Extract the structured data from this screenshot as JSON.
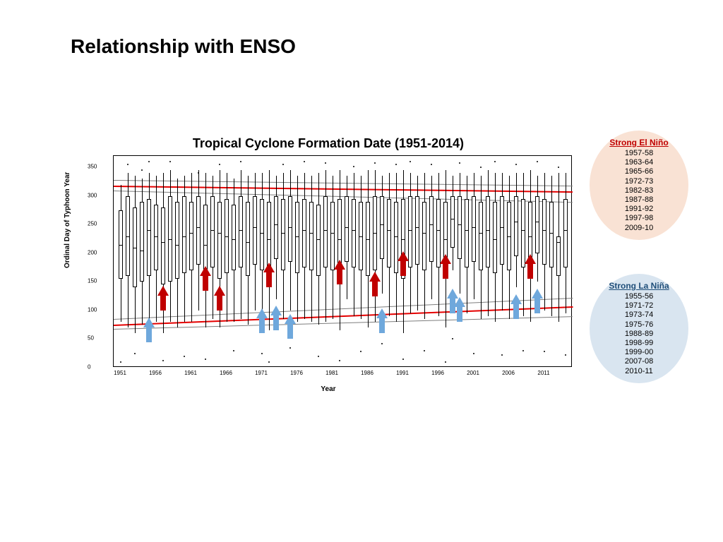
{
  "page_title": "Relationship with ENSO",
  "chart": {
    "type": "boxplot",
    "title": "Tropical Cyclone Formation Date (1951-2014)",
    "x_label": "Year",
    "y_label": "Ordinal Day of Typhoon Year",
    "ylim": [
      0,
      370
    ],
    "yticks": [
      0,
      50,
      100,
      150,
      200,
      250,
      300,
      350
    ],
    "xlim": [
      1951,
      2014
    ],
    "xticks": [
      1951,
      1956,
      1961,
      1966,
      1971,
      1976,
      1981,
      1986,
      1991,
      1996,
      2001,
      2006,
      2011
    ],
    "tick_fontsize": 8,
    "title_fontsize": 18,
    "label_fontsize": 10,
    "background_color": "#ffffff",
    "box_border_color": "#000000",
    "trend_lines": [
      {
        "color": "#e40000",
        "y_start": 75,
        "y_end": 107,
        "width": 2,
        "desc": "lower red"
      },
      {
        "color": "#e40000",
        "y_start": 318,
        "y_end": 308,
        "width": 2,
        "desc": "upper red"
      },
      {
        "color": "#7d7d7d",
        "y_start": 68,
        "y_end": 90,
        "width": 1,
        "desc": "lower CI bottom"
      },
      {
        "color": "#7d7d7d",
        "y_start": 85,
        "y_end": 122,
        "width": 1,
        "desc": "lower CI top"
      },
      {
        "color": "#7d7d7d",
        "y_start": 310,
        "y_end": 290,
        "width": 1,
        "desc": "upper CI bottom"
      },
      {
        "color": "#7d7d7d",
        "y_start": 328,
        "y_end": 318,
        "width": 1,
        "desc": "upper CI top"
      }
    ],
    "arrows_elnino": {
      "color": "#c00000",
      "years": [
        1957,
        1963,
        1965,
        1972,
        1982,
        1987,
        1991,
        1997,
        2009
      ],
      "y_positions": [
        100,
        135,
        100,
        140,
        145,
        125,
        160,
        155,
        155
      ]
    },
    "arrows_lanina": {
      "color": "#6fa8dc",
      "years": [
        1955,
        1971,
        1973,
        1975,
        1988,
        1998,
        1999,
        2007,
        2010
      ],
      "y_positions": [
        45,
        60,
        65,
        50,
        60,
        95,
        80,
        85,
        95
      ]
    },
    "boxes": [
      {
        "y": 1951,
        "q1": 155,
        "m": 215,
        "q3": 275,
        "lo": 80,
        "hi": 320
      },
      {
        "y": 1952,
        "q1": 160,
        "m": 230,
        "q3": 300,
        "lo": 70,
        "hi": 340
      },
      {
        "y": 1953,
        "q1": 140,
        "m": 210,
        "q3": 280,
        "lo": 60,
        "hi": 335
      },
      {
        "y": 1954,
        "q1": 150,
        "m": 205,
        "q3": 290,
        "lo": 75,
        "hi": 330
      },
      {
        "y": 1955,
        "q1": 160,
        "m": 240,
        "q3": 295,
        "lo": 65,
        "hi": 340
      },
      {
        "y": 1956,
        "q1": 170,
        "m": 230,
        "q3": 285,
        "lo": 80,
        "hi": 335
      },
      {
        "y": 1957,
        "q1": 145,
        "m": 220,
        "q3": 280,
        "lo": 60,
        "hi": 340
      },
      {
        "y": 1958,
        "q1": 150,
        "m": 225,
        "q3": 300,
        "lo": 80,
        "hi": 345
      },
      {
        "y": 1959,
        "q1": 155,
        "m": 215,
        "q3": 290,
        "lo": 70,
        "hi": 330
      },
      {
        "y": 1960,
        "q1": 165,
        "m": 230,
        "q3": 300,
        "lo": 80,
        "hi": 335
      },
      {
        "y": 1961,
        "q1": 170,
        "m": 235,
        "q3": 290,
        "lo": 80,
        "hi": 340
      },
      {
        "y": 1962,
        "q1": 180,
        "m": 245,
        "q3": 300,
        "lo": 100,
        "hi": 345
      },
      {
        "y": 1963,
        "q1": 150,
        "m": 215,
        "q3": 285,
        "lo": 70,
        "hi": 340
      },
      {
        "y": 1964,
        "q1": 175,
        "m": 240,
        "q3": 300,
        "lo": 85,
        "hi": 335
      },
      {
        "y": 1965,
        "q1": 155,
        "m": 235,
        "q3": 290,
        "lo": 70,
        "hi": 345
      },
      {
        "y": 1966,
        "q1": 165,
        "m": 230,
        "q3": 295,
        "lo": 80,
        "hi": 340
      },
      {
        "y": 1967,
        "q1": 170,
        "m": 225,
        "q3": 285,
        "lo": 80,
        "hi": 330
      },
      {
        "y": 1968,
        "q1": 175,
        "m": 240,
        "q3": 300,
        "lo": 85,
        "hi": 345
      },
      {
        "y": 1969,
        "q1": 160,
        "m": 220,
        "q3": 290,
        "lo": 75,
        "hi": 335
      },
      {
        "y": 1970,
        "q1": 180,
        "m": 245,
        "q3": 300,
        "lo": 100,
        "hi": 340
      },
      {
        "y": 1971,
        "q1": 170,
        "m": 235,
        "q3": 295,
        "lo": 80,
        "hi": 340
      },
      {
        "y": 1972,
        "q1": 155,
        "m": 225,
        "q3": 290,
        "lo": 65,
        "hi": 345
      },
      {
        "y": 1973,
        "q1": 190,
        "m": 250,
        "q3": 300,
        "lo": 120,
        "hi": 335
      },
      {
        "y": 1974,
        "q1": 170,
        "m": 235,
        "q3": 295,
        "lo": 85,
        "hi": 340
      },
      {
        "y": 1975,
        "q1": 185,
        "m": 245,
        "q3": 300,
        "lo": 100,
        "hi": 345
      },
      {
        "y": 1976,
        "q1": 165,
        "m": 230,
        "q3": 290,
        "lo": 80,
        "hi": 335
      },
      {
        "y": 1977,
        "q1": 175,
        "m": 240,
        "q3": 295,
        "lo": 85,
        "hi": 340
      },
      {
        "y": 1978,
        "q1": 170,
        "m": 235,
        "q3": 290,
        "lo": 80,
        "hi": 335
      },
      {
        "y": 1979,
        "q1": 160,
        "m": 225,
        "q3": 285,
        "lo": 75,
        "hi": 340
      },
      {
        "y": 1980,
        "q1": 175,
        "m": 240,
        "q3": 300,
        "lo": 80,
        "hi": 345
      },
      {
        "y": 1981,
        "q1": 170,
        "m": 235,
        "q3": 290,
        "lo": 85,
        "hi": 335
      },
      {
        "y": 1982,
        "q1": 155,
        "m": 225,
        "q3": 295,
        "lo": 65,
        "hi": 345
      },
      {
        "y": 1983,
        "q1": 185,
        "m": 245,
        "q3": 300,
        "lo": 120,
        "hi": 335
      },
      {
        "y": 1984,
        "q1": 175,
        "m": 240,
        "q3": 295,
        "lo": 90,
        "hi": 340
      },
      {
        "y": 1985,
        "q1": 170,
        "m": 230,
        "q3": 290,
        "lo": 85,
        "hi": 335
      },
      {
        "y": 1986,
        "q1": 160,
        "m": 225,
        "q3": 290,
        "lo": 70,
        "hi": 345
      },
      {
        "y": 1987,
        "q1": 170,
        "m": 235,
        "q3": 300,
        "lo": 80,
        "hi": 345
      },
      {
        "y": 1988,
        "q1": 190,
        "m": 250,
        "q3": 300,
        "lo": 130,
        "hi": 335
      },
      {
        "y": 1989,
        "q1": 175,
        "m": 240,
        "q3": 295,
        "lo": 90,
        "hi": 340
      },
      {
        "y": 1990,
        "q1": 165,
        "m": 230,
        "q3": 290,
        "lo": 80,
        "hi": 340
      },
      {
        "y": 1991,
        "q1": 155,
        "m": 225,
        "q3": 295,
        "lo": 60,
        "hi": 345
      },
      {
        "y": 1992,
        "q1": 175,
        "m": 240,
        "q3": 300,
        "lo": 95,
        "hi": 340
      },
      {
        "y": 1993,
        "q1": 180,
        "m": 245,
        "q3": 300,
        "lo": 100,
        "hi": 335
      },
      {
        "y": 1994,
        "q1": 170,
        "m": 235,
        "q3": 290,
        "lo": 85,
        "hi": 340
      },
      {
        "y": 1995,
        "q1": 185,
        "m": 250,
        "q3": 300,
        "lo": 120,
        "hi": 335
      },
      {
        "y": 1996,
        "q1": 175,
        "m": 240,
        "q3": 295,
        "lo": 90,
        "hi": 340
      },
      {
        "y": 1997,
        "q1": 160,
        "m": 225,
        "q3": 290,
        "lo": 70,
        "hi": 345
      },
      {
        "y": 1998,
        "q1": 210,
        "m": 260,
        "q3": 300,
        "lo": 170,
        "hi": 335
      },
      {
        "y": 1999,
        "q1": 190,
        "m": 250,
        "q3": 300,
        "lo": 130,
        "hi": 340
      },
      {
        "y": 2000,
        "q1": 175,
        "m": 240,
        "q3": 295,
        "lo": 95,
        "hi": 335
      },
      {
        "y": 2001,
        "q1": 185,
        "m": 245,
        "q3": 300,
        "lo": 120,
        "hi": 340
      },
      {
        "y": 2002,
        "q1": 170,
        "m": 235,
        "q3": 290,
        "lo": 85,
        "hi": 335
      },
      {
        "y": 2003,
        "q1": 175,
        "m": 240,
        "q3": 300,
        "lo": 90,
        "hi": 345
      },
      {
        "y": 2004,
        "q1": 165,
        "m": 225,
        "q3": 290,
        "lo": 80,
        "hi": 340
      },
      {
        "y": 2005,
        "q1": 180,
        "m": 245,
        "q3": 300,
        "lo": 100,
        "hi": 340
      },
      {
        "y": 2006,
        "q1": 170,
        "m": 230,
        "q3": 290,
        "lo": 85,
        "hi": 335
      },
      {
        "y": 2007,
        "q1": 195,
        "m": 255,
        "q3": 300,
        "lo": 140,
        "hi": 340
      },
      {
        "y": 2008,
        "q1": 175,
        "m": 240,
        "q3": 295,
        "lo": 90,
        "hi": 340
      },
      {
        "y": 2009,
        "q1": 165,
        "m": 230,
        "q3": 290,
        "lo": 80,
        "hi": 345
      },
      {
        "y": 2010,
        "q1": 200,
        "m": 255,
        "q3": 300,
        "lo": 150,
        "hi": 335
      },
      {
        "y": 2011,
        "q1": 180,
        "m": 240,
        "q3": 295,
        "lo": 100,
        "hi": 340
      },
      {
        "y": 2012,
        "q1": 175,
        "m": 235,
        "q3": 290,
        "lo": 90,
        "hi": 335
      },
      {
        "y": 2013,
        "q1": 160,
        "m": 220,
        "q3": 230,
        "lo": 80,
        "hi": 340
      },
      {
        "y": 2014,
        "q1": 175,
        "m": 240,
        "q3": 295,
        "lo": 95,
        "hi": 340
      }
    ],
    "outliers": [
      {
        "y": 1951,
        "v": 10
      },
      {
        "y": 1952,
        "v": 355
      },
      {
        "y": 1953,
        "v": 25
      },
      {
        "y": 1954,
        "v": 345
      },
      {
        "y": 1955,
        "v": 360
      },
      {
        "y": 1957,
        "v": 12
      },
      {
        "y": 1958,
        "v": 360
      },
      {
        "y": 1960,
        "v": 20
      },
      {
        "y": 1962,
        "v": 340
      },
      {
        "y": 1963,
        "v": 15
      },
      {
        "y": 1965,
        "v": 355
      },
      {
        "y": 1967,
        "v": 30
      },
      {
        "y": 1968,
        "v": 360
      },
      {
        "y": 1971,
        "v": 25
      },
      {
        "y": 1972,
        "v": 10
      },
      {
        "y": 1974,
        "v": 355
      },
      {
        "y": 1975,
        "v": 35
      },
      {
        "y": 1977,
        "v": 360
      },
      {
        "y": 1979,
        "v": 20
      },
      {
        "y": 1980,
        "v": 358
      },
      {
        "y": 1982,
        "v": 12
      },
      {
        "y": 1984,
        "v": 352
      },
      {
        "y": 1985,
        "v": 28
      },
      {
        "y": 1987,
        "v": 358
      },
      {
        "y": 1988,
        "v": 42
      },
      {
        "y": 1990,
        "v": 355
      },
      {
        "y": 1991,
        "v": 15
      },
      {
        "y": 1992,
        "v": 360
      },
      {
        "y": 1994,
        "v": 30
      },
      {
        "y": 1995,
        "v": 355
      },
      {
        "y": 1997,
        "v": 10
      },
      {
        "y": 1998,
        "v": 50
      },
      {
        "y": 1999,
        "v": 358
      },
      {
        "y": 2001,
        "v": 25
      },
      {
        "y": 2002,
        "v": 350
      },
      {
        "y": 2004,
        "v": 360
      },
      {
        "y": 2005,
        "v": 22
      },
      {
        "y": 2007,
        "v": 355
      },
      {
        "y": 2008,
        "v": 30
      },
      {
        "y": 2010,
        "v": 360
      },
      {
        "y": 2011,
        "v": 28
      },
      {
        "y": 2013,
        "v": 350
      },
      {
        "y": 2014,
        "v": 22
      }
    ]
  },
  "legend_elnino": {
    "title": "Strong El Niño",
    "title_color": "#c00000",
    "bg_color": "#f9e2d4",
    "items": [
      "1957-58",
      "1963-64",
      "1965-66",
      "1972-73",
      "1982-83",
      "1987-88",
      "1991-92",
      "1997-98",
      "2009-10"
    ]
  },
  "legend_lanina": {
    "title": "Strong La Niña",
    "title_color": "#1f4e79",
    "bg_color": "#d9e5f0",
    "items": [
      "1955-56",
      "1971-72",
      "1973-74",
      "1975-76",
      "1988-89",
      "1998-99",
      "1999-00",
      "2007-08",
      "2010-11"
    ]
  }
}
